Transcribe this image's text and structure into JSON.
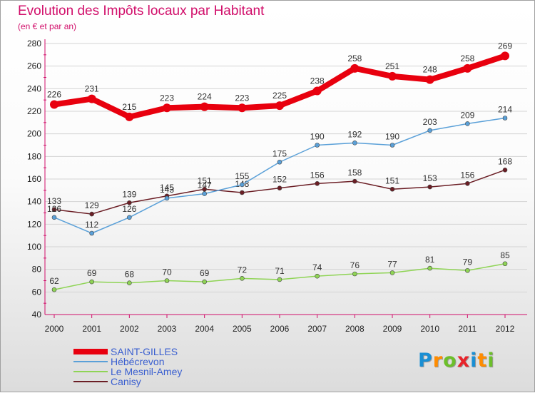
{
  "title": "Evolution des Impôts locaux par Habitant",
  "subtitle": "(en € et par an)",
  "logo": {
    "letters": [
      "P",
      "r",
      "o",
      "x",
      "i",
      "t",
      "i"
    ],
    "colors": [
      "#1a8fd4",
      "#ff8c00",
      "#6cbf2a",
      "#e8232a",
      "#1a8fd4",
      "#ff8c00",
      "#6cbf2a"
    ]
  },
  "chart_data": {
    "type": "line",
    "x": [
      "2000",
      "2001",
      "2002",
      "2003",
      "2004",
      "2005",
      "2006",
      "2007",
      "2008",
      "2009",
      "2010",
      "2011",
      "2012"
    ],
    "ylim": [
      40,
      280
    ],
    "yticks": [
      "40",
      "60",
      "80",
      "100",
      "120",
      "140",
      "160",
      "180",
      "200",
      "220",
      "240",
      "260",
      "280"
    ],
    "grid": "horizontal",
    "legend_position": "bottom-left",
    "series": [
      {
        "name": "SAINT-GILLES",
        "color": "#e8000e",
        "values": [
          226,
          231,
          215,
          223,
          224,
          223,
          225,
          238,
          258,
          251,
          248,
          258,
          269
        ]
      },
      {
        "name": "Hébécrevon",
        "color": "#5aa0d8",
        "values": [
          126,
          112,
          126,
          143,
          147,
          155,
          175,
          190,
          192,
          190,
          203,
          209,
          214
        ]
      },
      {
        "name": "Le Mesnil-Amey",
        "color": "#8fd455",
        "values": [
          62,
          69,
          68,
          70,
          69,
          72,
          71,
          74,
          76,
          77,
          81,
          79,
          85
        ]
      },
      {
        "name": "Canisy",
        "color": "#6b1e25",
        "values": [
          133,
          129,
          139,
          145,
          151,
          148,
          152,
          156,
          158,
          151,
          153,
          156,
          168
        ]
      }
    ]
  }
}
